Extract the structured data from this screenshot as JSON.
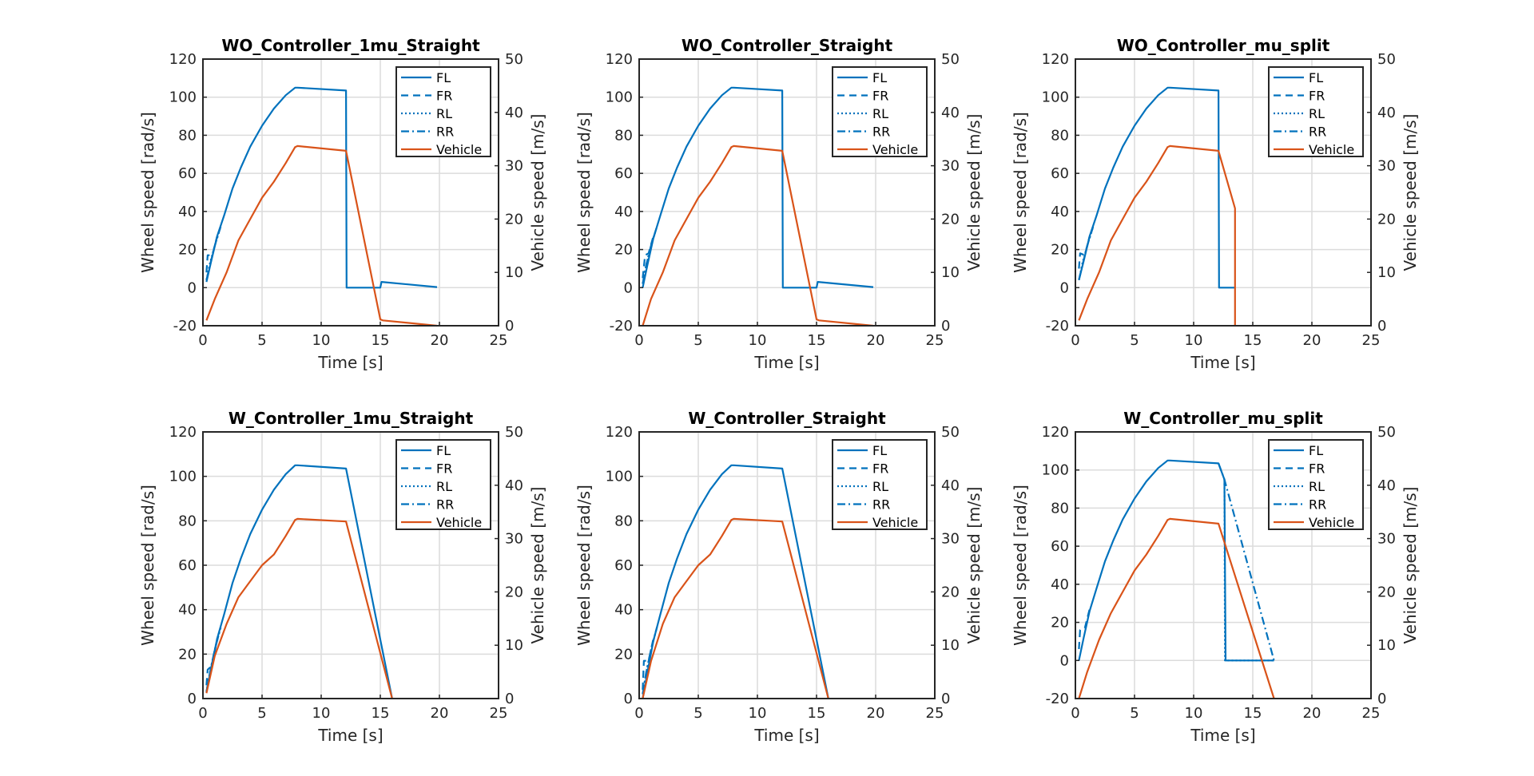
{
  "chart_data": [
    {
      "type": "line",
      "title": "WO_Controller_1mu_Straight",
      "xlabel": "Time [s]",
      "ylabel": "Wheel speed [rad/s]",
      "y2label": "Vehicle speed [m/s]",
      "xlim": [
        0,
        25
      ],
      "ylim": [
        -20,
        120
      ],
      "y2lim": [
        0,
        50
      ],
      "xticks": [
        0,
        5,
        10,
        15,
        20,
        25
      ],
      "yticks": [
        -20,
        0,
        20,
        40,
        60,
        80,
        100,
        120
      ],
      "y2ticks": [
        0,
        10,
        20,
        30,
        40,
        50
      ],
      "grid": true,
      "legend_position": "top-right",
      "series": [
        {
          "name": "FL",
          "axis": "left",
          "style": "solid",
          "color": "#0072BD",
          "x": [
            0.3,
            0.7,
            1.2,
            1.8,
            2.5,
            3.2,
            4.0,
            5.0,
            6.0,
            7.0,
            7.8,
            8.0,
            12.1,
            12.15,
            15.0,
            15.1,
            19.8
          ],
          "y": [
            3,
            14,
            27,
            38,
            52,
            63,
            74,
            85,
            94,
            101,
            105,
            105,
            103.5,
            0,
            0,
            3,
            0.3
          ]
        },
        {
          "name": "FR",
          "axis": "left",
          "style": "dashed",
          "color": "#0072BD",
          "x": [
            0.3,
            0.4,
            0.8,
            1.2
          ],
          "y": [
            8,
            17,
            17,
            27
          ]
        },
        {
          "name": "RL",
          "axis": "left",
          "style": "dotted",
          "color": "#0072BD",
          "x": [
            0.3,
            0.6,
            1.0,
            1.5
          ],
          "y": [
            4,
            13,
            22,
            32
          ]
        },
        {
          "name": "RR",
          "axis": "left",
          "style": "dashdot",
          "color": "#0072BD",
          "x": [
            0.3,
            0.6,
            1.0,
            1.5
          ],
          "y": [
            4,
            12,
            22,
            32
          ]
        },
        {
          "name": "Vehicle",
          "axis": "right",
          "style": "solid",
          "color": "#D95319",
          "x": [
            0.3,
            1.0,
            2.0,
            3.0,
            4.0,
            5.0,
            6.0,
            7.0,
            7.8,
            8.0,
            12.1,
            15.0,
            15.2,
            19.8
          ],
          "y": [
            1,
            5,
            10,
            16,
            20,
            24,
            27,
            30.5,
            33.5,
            33.7,
            32.8,
            1.2,
            1,
            0
          ]
        }
      ]
    },
    {
      "type": "line",
      "title": "WO_Controller_Straight",
      "xlabel": "Time [s]",
      "ylabel": "Wheel speed [rad/s]",
      "y2label": "Vehicle speed [m/s]",
      "xlim": [
        0,
        25
      ],
      "ylim": [
        -20,
        120
      ],
      "y2lim": [
        0,
        50
      ],
      "xticks": [
        0,
        5,
        10,
        15,
        20,
        25
      ],
      "yticks": [
        -20,
        0,
        20,
        40,
        60,
        80,
        100,
        120
      ],
      "y2ticks": [
        0,
        10,
        20,
        30,
        40,
        50
      ],
      "grid": true,
      "legend_position": "top-right",
      "series": [
        {
          "name": "FL",
          "axis": "left",
          "style": "solid",
          "color": "#0072BD",
          "x": [
            0.3,
            0.7,
            1.2,
            1.8,
            2.5,
            3.2,
            4.0,
            5.0,
            6.0,
            7.0,
            7.8,
            8.0,
            12.1,
            12.15,
            15.0,
            15.1,
            19.8
          ],
          "y": [
            0,
            12,
            26,
            38,
            52,
            63,
            74,
            85,
            94,
            101,
            105,
            105,
            103.5,
            0,
            0,
            3,
            0.3
          ]
        },
        {
          "name": "FR",
          "axis": "left",
          "style": "dashed",
          "color": "#0072BD",
          "x": [
            0.3,
            0.5,
            0.8,
            1.2
          ],
          "y": [
            5,
            17,
            18,
            27
          ]
        },
        {
          "name": "RL",
          "axis": "left",
          "style": "dotted",
          "color": "#0072BD",
          "x": [
            0.3,
            0.6,
            1.0,
            1.5
          ],
          "y": [
            2,
            12,
            22,
            32
          ]
        },
        {
          "name": "RR",
          "axis": "left",
          "style": "dashdot",
          "color": "#0072BD",
          "x": [
            0.3,
            0.6,
            1.0,
            1.5
          ],
          "y": [
            2,
            12,
            22,
            32
          ]
        },
        {
          "name": "Vehicle",
          "axis": "right",
          "style": "solid",
          "color": "#D95319",
          "x": [
            0.3,
            1.0,
            2.0,
            3.0,
            4.0,
            5.0,
            6.0,
            7.0,
            7.8,
            8.0,
            12.1,
            15.0,
            15.2,
            19.8
          ],
          "y": [
            0,
            5,
            10,
            16,
            20,
            24,
            27,
            30.5,
            33.5,
            33.7,
            32.8,
            1.2,
            1,
            0
          ]
        }
      ]
    },
    {
      "type": "line",
      "title": "WO_Controller_mu_split",
      "xlabel": "Time [s]",
      "ylabel": "Wheel speed [rad/s]",
      "y2label": "Vehicle speed [m/s]",
      "xlim": [
        0,
        25
      ],
      "ylim": [
        -20,
        120
      ],
      "y2lim": [
        0,
        50
      ],
      "xticks": [
        0,
        5,
        10,
        15,
        20,
        25
      ],
      "yticks": [
        -20,
        0,
        20,
        40,
        60,
        80,
        100,
        120
      ],
      "y2ticks": [
        0,
        10,
        20,
        30,
        40,
        50
      ],
      "grid": true,
      "legend_position": "top-right",
      "series": [
        {
          "name": "FL",
          "axis": "left",
          "style": "solid",
          "color": "#0072BD",
          "x": [
            0.3,
            0.7,
            1.2,
            1.8,
            2.5,
            3.2,
            4.0,
            5.0,
            6.0,
            7.0,
            7.8,
            8.0,
            12.1,
            12.15,
            13.5
          ],
          "y": [
            4,
            14,
            27,
            38,
            52,
            63,
            74,
            85,
            94,
            101,
            105,
            105,
            103.5,
            0,
            0
          ]
        },
        {
          "name": "FR",
          "axis": "left",
          "style": "dashed",
          "color": "#0072BD",
          "x": [
            0.3,
            0.4,
            0.8,
            1.2
          ],
          "y": [
            10,
            18,
            17,
            27
          ]
        },
        {
          "name": "RL",
          "axis": "left",
          "style": "dotted",
          "color": "#0072BD",
          "x": [
            0.3,
            0.6,
            1.0,
            1.5
          ],
          "y": [
            4,
            13,
            22,
            32
          ]
        },
        {
          "name": "RR",
          "axis": "left",
          "style": "dashdot",
          "color": "#0072BD",
          "x": [
            0.3,
            0.6,
            1.0,
            1.5
          ],
          "y": [
            4,
            12,
            22,
            32
          ]
        },
        {
          "name": "Vehicle",
          "axis": "right",
          "style": "solid",
          "color": "#D95319",
          "x": [
            0.3,
            1.0,
            2.0,
            3.0,
            4.0,
            5.0,
            6.0,
            7.0,
            7.8,
            8.0,
            12.1,
            13.5,
            13.5
          ],
          "y": [
            1,
            5,
            10,
            16,
            20,
            24,
            27,
            30.5,
            33.5,
            33.7,
            32.8,
            22,
            0
          ]
        }
      ]
    },
    {
      "type": "line",
      "title": "W_Controller_1mu_Straight",
      "xlabel": "Time [s]",
      "ylabel": "Wheel speed [rad/s]",
      "y2label": "Vehicle speed [m/s]",
      "xlim": [
        0,
        25
      ],
      "ylim": [
        0,
        120
      ],
      "y2lim": [
        0,
        50
      ],
      "xticks": [
        0,
        5,
        10,
        15,
        20,
        25
      ],
      "yticks": [
        0,
        20,
        40,
        60,
        80,
        100,
        120
      ],
      "y2ticks": [
        0,
        10,
        20,
        30,
        40,
        50
      ],
      "grid": true,
      "legend_position": "top-right",
      "series": [
        {
          "name": "FL",
          "axis": "left",
          "style": "solid",
          "color": "#0072BD",
          "x": [
            0.3,
            0.7,
            1.2,
            1.8,
            2.5,
            3.2,
            4.0,
            5.0,
            6.0,
            7.0,
            7.8,
            8.0,
            12.1,
            16.0
          ],
          "y": [
            3,
            14,
            27,
            38,
            52,
            63,
            74,
            85,
            94,
            101,
            105,
            105,
            103.5,
            0
          ]
        },
        {
          "name": "FR",
          "axis": "left",
          "style": "dashed",
          "color": "#0072BD",
          "x": [
            0.3,
            0.4,
            0.8,
            1.2
          ],
          "y": [
            6,
            13,
            15,
            27
          ]
        },
        {
          "name": "RL",
          "axis": "left",
          "style": "dotted",
          "color": "#0072BD",
          "x": [
            0.3,
            0.6,
            1.0,
            1.5
          ],
          "y": [
            3,
            12,
            22,
            32
          ]
        },
        {
          "name": "RR",
          "axis": "left",
          "style": "dashdot",
          "color": "#0072BD",
          "x": [
            0.3,
            0.6,
            1.0,
            1.5
          ],
          "y": [
            3,
            12,
            22,
            32
          ]
        },
        {
          "name": "Vehicle",
          "axis": "right",
          "style": "solid",
          "color": "#D95319",
          "x": [
            0.3,
            1.0,
            2.0,
            3.0,
            4.0,
            5.0,
            6.0,
            7.0,
            7.8,
            8.0,
            12.1,
            16.0
          ],
          "y": [
            1,
            8,
            14,
            19,
            22,
            25,
            27,
            30.5,
            33.5,
            33.7,
            33.2,
            0
          ]
        }
      ]
    },
    {
      "type": "line",
      "title": "W_Controller_Straight",
      "xlabel": "Time [s]",
      "ylabel": "Wheel speed [rad/s]",
      "y2label": "Vehicle speed [m/s]",
      "xlim": [
        0,
        25
      ],
      "ylim": [
        0,
        120
      ],
      "y2lim": [
        0,
        50
      ],
      "xticks": [
        0,
        5,
        10,
        15,
        20,
        25
      ],
      "yticks": [
        0,
        20,
        40,
        60,
        80,
        100,
        120
      ],
      "y2ticks": [
        0,
        10,
        20,
        30,
        40,
        50
      ],
      "grid": true,
      "legend_position": "top-right",
      "series": [
        {
          "name": "FL",
          "axis": "left",
          "style": "solid",
          "color": "#0072BD",
          "x": [
            0.3,
            0.7,
            1.2,
            1.8,
            2.5,
            3.2,
            4.0,
            5.0,
            6.0,
            7.0,
            7.8,
            8.0,
            12.1,
            16.0
          ],
          "y": [
            0,
            12,
            26,
            38,
            52,
            63,
            74,
            85,
            94,
            101,
            105,
            105,
            103.5,
            0
          ]
        },
        {
          "name": "FR",
          "axis": "left",
          "style": "dashed",
          "color": "#0072BD",
          "x": [
            0.3,
            0.4,
            0.8,
            1.2
          ],
          "y": [
            4,
            17,
            17,
            27
          ]
        },
        {
          "name": "RL",
          "axis": "left",
          "style": "dotted",
          "color": "#0072BD",
          "x": [
            0.3,
            0.6,
            1.0,
            1.5
          ],
          "y": [
            2,
            12,
            22,
            32
          ]
        },
        {
          "name": "RR",
          "axis": "left",
          "style": "dashdot",
          "color": "#0072BD",
          "x": [
            0.3,
            0.6,
            1.0,
            1.5
          ],
          "y": [
            2,
            12,
            22,
            32
          ]
        },
        {
          "name": "Vehicle",
          "axis": "right",
          "style": "solid",
          "color": "#D95319",
          "x": [
            0.3,
            1.0,
            2.0,
            3.0,
            4.0,
            5.0,
            6.0,
            7.0,
            7.8,
            8.0,
            12.1,
            16.0
          ],
          "y": [
            0,
            7,
            14,
            19,
            22,
            25,
            27,
            30.5,
            33.5,
            33.7,
            33.2,
            0
          ]
        }
      ]
    },
    {
      "type": "line",
      "title": "W_Controller_mu_split",
      "xlabel": "Time [s]",
      "ylabel": "Wheel speed [rad/s]",
      "y2label": "Vehicle speed [m/s]",
      "xlim": [
        0,
        25
      ],
      "ylim": [
        -20,
        120
      ],
      "y2lim": [
        0,
        50
      ],
      "xticks": [
        0,
        5,
        10,
        15,
        20,
        25
      ],
      "yticks": [
        -20,
        0,
        20,
        40,
        60,
        80,
        100,
        120
      ],
      "y2ticks": [
        0,
        10,
        20,
        30,
        40,
        50
      ],
      "grid": true,
      "legend_position": "top-right",
      "series": [
        {
          "name": "FL",
          "axis": "left",
          "style": "solid",
          "color": "#0072BD",
          "x": [
            0.3,
            0.7,
            1.2,
            1.8,
            2.5,
            3.2,
            4.0,
            5.0,
            6.0,
            7.0,
            7.8,
            8.0,
            12.1,
            12.6,
            12.7,
            16.8
          ],
          "y": [
            0,
            12,
            26,
            38,
            52,
            63,
            74,
            85,
            94,
            101,
            105,
            105,
            103.5,
            95,
            0,
            0
          ]
        },
        {
          "name": "FR",
          "axis": "left",
          "style": "dashed",
          "color": "#0072BD",
          "x": [
            0.3,
            0.4,
            0.8,
            1.2
          ],
          "y": [
            6,
            16,
            17,
            27
          ]
        },
        {
          "name": "RL",
          "axis": "left",
          "style": "dotted",
          "color": "#0072BD",
          "x": [
            12.6,
            12.65,
            16.8
          ],
          "y": [
            95,
            0,
            0
          ]
        },
        {
          "name": "RR",
          "axis": "left",
          "style": "dashdot",
          "color": "#0072BD",
          "x": [
            12.1,
            12.6,
            16.8
          ],
          "y": [
            103.5,
            95,
            0
          ]
        },
        {
          "name": "Vehicle",
          "axis": "right",
          "style": "solid",
          "color": "#D95319",
          "x": [
            0.3,
            1.0,
            2.0,
            3.0,
            4.0,
            5.0,
            6.0,
            7.0,
            7.8,
            8.0,
            12.1,
            16.8
          ],
          "y": [
            0,
            5,
            11,
            16,
            20,
            24,
            27,
            30.5,
            33.5,
            33.7,
            32.8,
            0
          ]
        }
      ]
    }
  ]
}
